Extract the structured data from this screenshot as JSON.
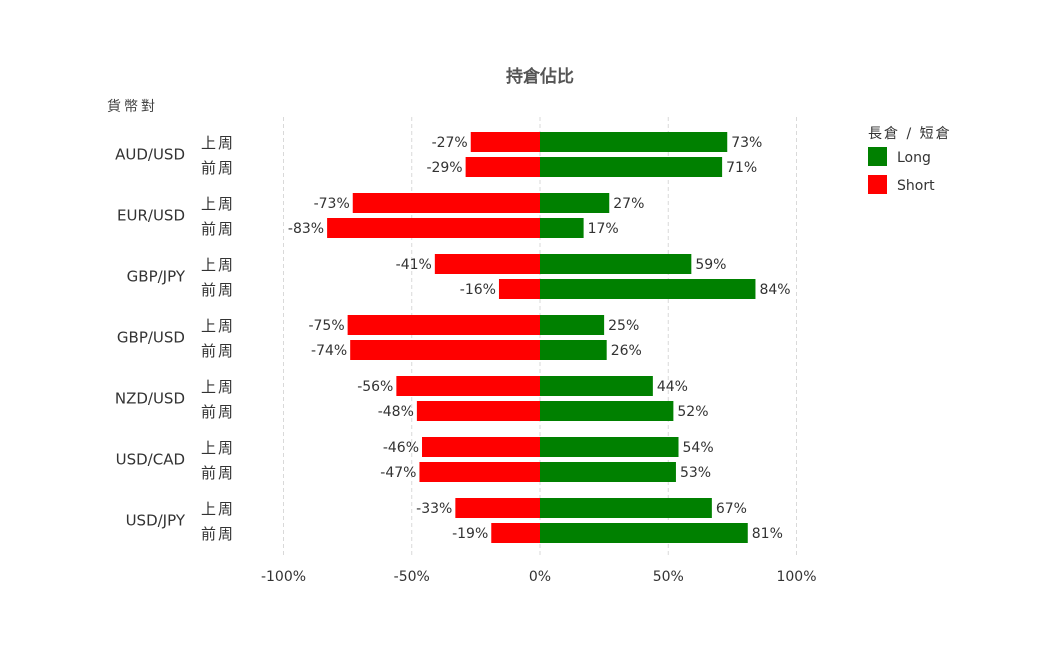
{
  "chart_data": {
    "type": "bar",
    "orientation": "horizontal",
    "title": "持倉佔比",
    "y_axis_title": "貨幣對",
    "legend_title": "長倉 / 短倉",
    "legend_placement": "top-right",
    "grid": true,
    "xlim": [
      -100,
      100
    ],
    "x_ticks": [
      -100,
      -50,
      0,
      50,
      100
    ],
    "x_tick_labels": [
      "-100%",
      "-50%",
      "0%",
      "50%",
      "100%"
    ],
    "categories": [
      "AUD/USD",
      "EUR/USD",
      "GBP/JPY",
      "GBP/USD",
      "NZD/USD",
      "USD/CAD",
      "USD/JPY"
    ],
    "periods": [
      "上周",
      "前周"
    ],
    "series": [
      {
        "name": "Long",
        "color": "#008000",
        "values": [
          [
            73,
            71
          ],
          [
            27,
            17
          ],
          [
            59,
            84
          ],
          [
            25,
            26
          ],
          [
            44,
            52
          ],
          [
            54,
            53
          ],
          [
            67,
            81
          ]
        ],
        "labels": [
          [
            "73%",
            "71%"
          ],
          [
            "27%",
            "17%"
          ],
          [
            "59%",
            "84%"
          ],
          [
            "25%",
            "26%"
          ],
          [
            "44%",
            "52%"
          ],
          [
            "54%",
            "53%"
          ],
          [
            "67%",
            "81%"
          ]
        ]
      },
      {
        "name": "Short",
        "color": "#ff0000",
        "values": [
          [
            -27,
            -29
          ],
          [
            -73,
            -83
          ],
          [
            -41,
            -16
          ],
          [
            -75,
            -74
          ],
          [
            -56,
            -48
          ],
          [
            -46,
            -47
          ],
          [
            -33,
            -19
          ]
        ],
        "labels": [
          [
            "-27%",
            "-29%"
          ],
          [
            "-73%",
            "-83%"
          ],
          [
            "-41%",
            "-16%"
          ],
          [
            "-75%",
            "-74%"
          ],
          [
            "-56%",
            "-48%"
          ],
          [
            "-46%",
            "-47%"
          ],
          [
            "-33%",
            "-19%"
          ]
        ]
      }
    ]
  }
}
